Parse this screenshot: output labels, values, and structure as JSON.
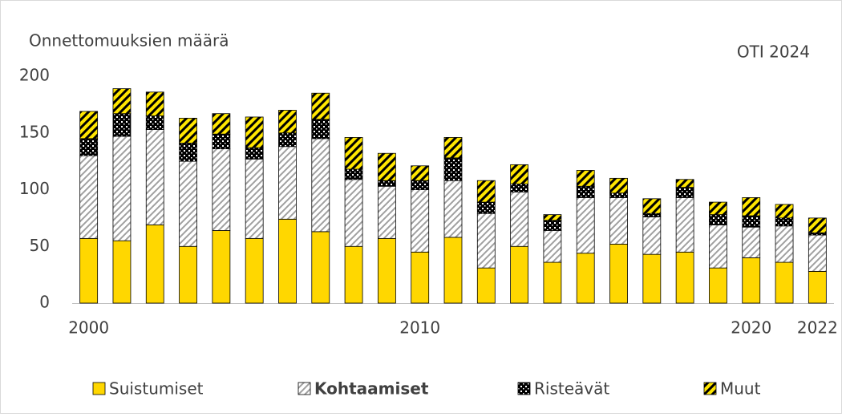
{
  "chart_data": {
    "type": "stacked_bar",
    "ylabel": "Onnettomuuksien määrä",
    "annotation": "OTI 2024",
    "categories": [
      "2000",
      null,
      null,
      null,
      null,
      null,
      null,
      null,
      null,
      null,
      "2010",
      null,
      null,
      null,
      null,
      null,
      null,
      null,
      null,
      null,
      "2020",
      null,
      "2022"
    ],
    "ylim": [
      0,
      200
    ],
    "yticks": [
      0,
      50,
      100,
      150,
      200
    ],
    "grid": false,
    "series": [
      {
        "name": "Suistumiset",
        "color": "#ffd700",
        "pattern": "solid",
        "bold": false,
        "values": [
          57,
          55,
          69,
          50,
          64,
          57,
          74,
          63,
          50,
          57,
          45,
          58,
          31,
          50,
          36,
          44,
          52,
          43,
          45,
          31,
          40,
          36,
          28
        ]
      },
      {
        "name": "Kohtaamiset",
        "color": "#a0a0a0",
        "pattern": "hatch",
        "bold": true,
        "values": [
          73,
          92,
          84,
          75,
          72,
          70,
          64,
          82,
          59,
          46,
          55,
          50,
          48,
          48,
          28,
          49,
          41,
          33,
          48,
          38,
          27,
          32,
          32
        ]
      },
      {
        "name": "Risteävät",
        "color": "#000000",
        "pattern": "checker",
        "bold": false,
        "values": [
          15,
          20,
          12,
          16,
          13,
          10,
          12,
          17,
          9,
          5,
          8,
          20,
          10,
          7,
          9,
          10,
          4,
          3,
          9,
          9,
          10,
          7,
          2
        ]
      },
      {
        "name": "Muut",
        "color": "#000000",
        "pattern": "stripes",
        "bold": false,
        "values": [
          24,
          22,
          21,
          22,
          18,
          27,
          20,
          23,
          28,
          24,
          13,
          18,
          19,
          17,
          5,
          14,
          13,
          13,
          7,
          11,
          16,
          12,
          13
        ]
      }
    ]
  }
}
